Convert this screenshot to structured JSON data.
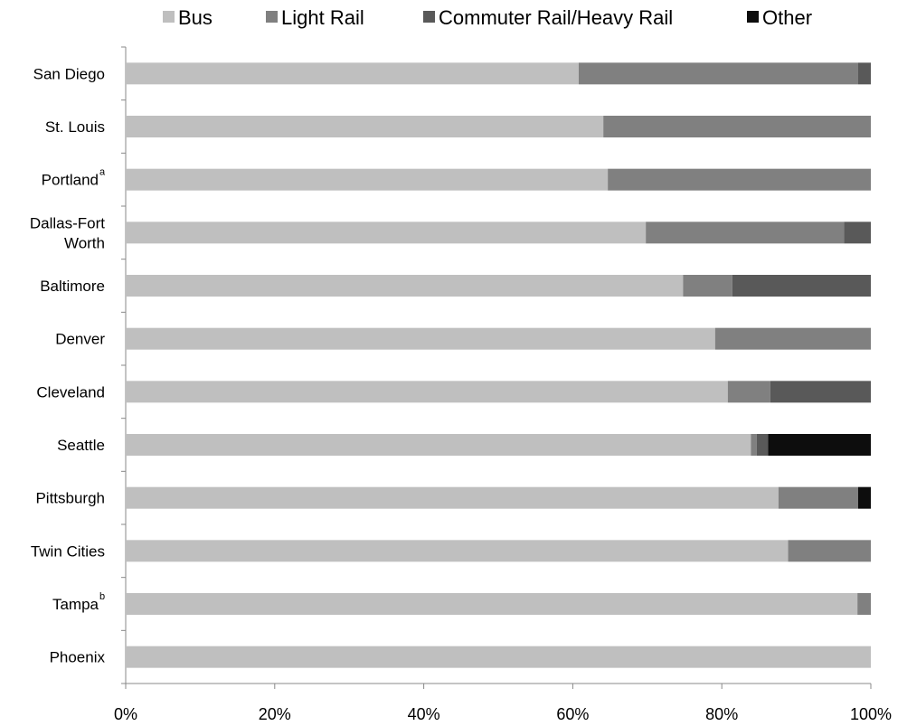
{
  "chart_data": {
    "type": "bar",
    "orientation": "horizontal",
    "stacked": true,
    "percent_scale": true,
    "categories": [
      {
        "label": "San Diego",
        "sup": ""
      },
      {
        "label": "St. Louis",
        "sup": ""
      },
      {
        "label": "Portland",
        "sup": "a"
      },
      {
        "label": "Dallas-Fort Worth",
        "sup": ""
      },
      {
        "label": "Baltimore",
        "sup": ""
      },
      {
        "label": "Denver",
        "sup": ""
      },
      {
        "label": "Cleveland",
        "sup": ""
      },
      {
        "label": "Seattle",
        "sup": ""
      },
      {
        "label": "Pittsburgh",
        "sup": ""
      },
      {
        "label": "Twin Cities",
        "sup": ""
      },
      {
        "label": "Tampa",
        "sup": "b"
      },
      {
        "label": "Phoenix",
        "sup": ""
      }
    ],
    "series": [
      {
        "name": "Bus",
        "color": "#bfbfbf",
        "values": [
          60.8,
          64.1,
          64.7,
          69.8,
          74.8,
          79.1,
          80.8,
          83.9,
          87.6,
          88.9,
          98.2,
          100
        ]
      },
      {
        "name": "Light Rail",
        "color": "#808080",
        "values": [
          37.5,
          35.9,
          35.3,
          26.6,
          6.6,
          20.9,
          5.7,
          0.8,
          10.7,
          11.1,
          1.8,
          0
        ]
      },
      {
        "name": "Commuter Rail/Heavy Rail",
        "color": "#595959",
        "values": [
          1.7,
          0,
          0,
          3.6,
          18.6,
          0,
          13.5,
          1.5,
          0,
          0,
          0,
          0
        ]
      },
      {
        "name": "Other",
        "color": "#0d0d0d",
        "values": [
          0,
          0,
          0,
          0,
          0,
          0,
          0,
          13.8,
          1.7,
          0,
          0,
          0
        ]
      }
    ],
    "xlim": [
      0,
      100
    ],
    "xticks": [
      "0%",
      "20%",
      "40%",
      "60%",
      "80%",
      "100%"
    ],
    "legend_position": "top",
    "grid": false
  }
}
